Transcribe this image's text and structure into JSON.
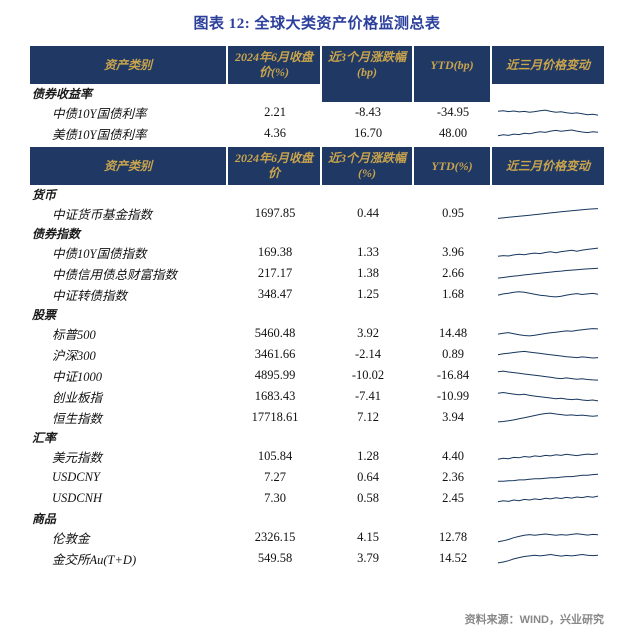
{
  "title": "图表 12: 全球大类资产价格监测总表",
  "source": "资料来源：WIND，兴业研究",
  "colors": {
    "header_bg": "#1F3864",
    "header_text": "#C9A44C",
    "title_text": "#2B3F9C",
    "spark": "#17375E",
    "source_text": "#888888",
    "text": "#111111"
  },
  "chart_data": [
    {
      "type": "table",
      "columns": [
        "资产类别",
        "2024年6月收盘价(%)",
        "近3个月涨跌幅(bp)",
        "YTD(bp)",
        "近三月价格变动"
      ],
      "sections": [
        {
          "label": "债券收益率",
          "rows": [
            {
              "name": "中债10Y国债利率",
              "close": "2.21",
              "chg_3m": "-8.43",
              "ytd": "-34.95",
              "spark": [
                0.62,
                0.66,
                0.58,
                0.64,
                0.55,
                0.6,
                0.52,
                0.58,
                0.66,
                0.72,
                0.6,
                0.52,
                0.56,
                0.48,
                0.42,
                0.46,
                0.38,
                0.3,
                0.34,
                0.26
              ]
            },
            {
              "name": "美债10Y国债利率",
              "close": "4.36",
              "chg_3m": "16.70",
              "ytd": "48.00",
              "spark": [
                0.3,
                0.38,
                0.33,
                0.45,
                0.4,
                0.52,
                0.47,
                0.58,
                0.66,
                0.6,
                0.72,
                0.78,
                0.7,
                0.76,
                0.82,
                0.72,
                0.64,
                0.58,
                0.66,
                0.62
              ]
            }
          ]
        }
      ]
    },
    {
      "type": "table",
      "columns": [
        "资产类别",
        "2024年6月收盘价",
        "近3个月涨跌幅(%)",
        "YTD(%)",
        "近三月价格变动"
      ],
      "sections": [
        {
          "label": "货币",
          "rows": [
            {
              "name": "中证货币基金指数",
              "close": "1697.85",
              "chg_3m": "0.44",
              "ytd": "0.95",
              "spark": [
                0.05,
                0.1,
                0.15,
                0.2,
                0.25,
                0.3,
                0.35,
                0.4,
                0.45,
                0.5,
                0.55,
                0.6,
                0.65,
                0.7,
                0.75,
                0.8,
                0.85,
                0.88,
                0.92,
                0.95
              ]
            }
          ]
        },
        {
          "label": "债券指数",
          "rows": [
            {
              "name": "中债10Y国债指数",
              "close": "169.38",
              "chg_3m": "1.33",
              "ytd": "3.96",
              "spark": [
                0.15,
                0.22,
                0.18,
                0.28,
                0.34,
                0.3,
                0.38,
                0.45,
                0.4,
                0.5,
                0.56,
                0.48,
                0.58,
                0.64,
                0.7,
                0.62,
                0.72,
                0.78,
                0.85,
                0.9
              ]
            },
            {
              "name": "中债信用债总财富指数",
              "close": "217.17",
              "chg_3m": "1.38",
              "ytd": "2.66",
              "spark": [
                0.08,
                0.14,
                0.2,
                0.26,
                0.31,
                0.37,
                0.42,
                0.48,
                0.53,
                0.58,
                0.63,
                0.68,
                0.72,
                0.77,
                0.81,
                0.85,
                0.89,
                0.92,
                0.95,
                0.97
              ]
            },
            {
              "name": "中证转债指数",
              "close": "348.47",
              "chg_3m": "1.25",
              "ytd": "1.68",
              "spark": [
                0.45,
                0.55,
                0.62,
                0.7,
                0.75,
                0.7,
                0.62,
                0.52,
                0.44,
                0.38,
                0.32,
                0.28,
                0.35,
                0.45,
                0.52,
                0.58,
                0.5,
                0.55,
                0.6,
                0.52
              ]
            }
          ]
        },
        {
          "label": "股票",
          "rows": [
            {
              "name": "标普500",
              "close": "5460.48",
              "chg_3m": "3.92",
              "ytd": "14.48",
              "spark": [
                0.45,
                0.52,
                0.58,
                0.48,
                0.38,
                0.32,
                0.28,
                0.35,
                0.42,
                0.5,
                0.56,
                0.62,
                0.68,
                0.74,
                0.7,
                0.78,
                0.84,
                0.9,
                0.95,
                0.92
              ]
            },
            {
              "name": "沪深300",
              "close": "3461.66",
              "chg_3m": "-2.14",
              "ytd": "0.89",
              "spark": [
                0.48,
                0.56,
                0.62,
                0.68,
                0.74,
                0.78,
                0.72,
                0.66,
                0.6,
                0.54,
                0.48,
                0.42,
                0.36,
                0.3,
                0.26,
                0.22,
                0.28,
                0.24,
                0.18,
                0.22
              ]
            },
            {
              "name": "中证1000",
              "close": "4895.99",
              "chg_3m": "-10.02",
              "ytd": "-16.84",
              "spark": [
                0.85,
                0.9,
                0.82,
                0.76,
                0.7,
                0.64,
                0.58,
                0.52,
                0.46,
                0.4,
                0.34,
                0.26,
                0.22,
                0.28,
                0.22,
                0.16,
                0.2,
                0.14,
                0.1,
                0.08
              ]
            },
            {
              "name": "创业板指",
              "close": "1683.43",
              "chg_3m": "-7.41",
              "ytd": "-10.99",
              "spark": [
                0.8,
                0.86,
                0.78,
                0.72,
                0.66,
                0.7,
                0.6,
                0.54,
                0.48,
                0.42,
                0.36,
                0.3,
                0.34,
                0.26,
                0.22,
                0.26,
                0.18,
                0.14,
                0.18,
                0.1
              ]
            },
            {
              "name": "恒生指数",
              "close": "17718.61",
              "chg_3m": "7.12",
              "ytd": "3.94",
              "spark": [
                0.1,
                0.14,
                0.2,
                0.28,
                0.38,
                0.48,
                0.58,
                0.68,
                0.78,
                0.86,
                0.9,
                0.82,
                0.76,
                0.7,
                0.74,
                0.68,
                0.72,
                0.66,
                0.62,
                0.66
              ]
            }
          ]
        },
        {
          "label": "汇率",
          "rows": [
            {
              "name": "美元指数",
              "close": "105.84",
              "chg_3m": "1.28",
              "ytd": "4.40",
              "spark": [
                0.25,
                0.35,
                0.3,
                0.42,
                0.38,
                0.5,
                0.45,
                0.55,
                0.5,
                0.6,
                0.55,
                0.65,
                0.6,
                0.7,
                0.64,
                0.58,
                0.66,
                0.72,
                0.68,
                0.75
              ]
            },
            {
              "name": "USDCNY",
              "close": "7.27",
              "chg_3m": "0.64",
              "ytd": "2.36",
              "spark": [
                0.15,
                0.15,
                0.2,
                0.22,
                0.28,
                0.28,
                0.34,
                0.38,
                0.38,
                0.44,
                0.48,
                0.48,
                0.54,
                0.58,
                0.58,
                0.64,
                0.7,
                0.7,
                0.76,
                0.8
              ]
            },
            {
              "name": "USDCNH",
              "close": "7.30",
              "chg_3m": "0.58",
              "ytd": "2.45",
              "spark": [
                0.2,
                0.3,
                0.24,
                0.36,
                0.3,
                0.42,
                0.36,
                0.46,
                0.4,
                0.52,
                0.46,
                0.56,
                0.5,
                0.6,
                0.54,
                0.64,
                0.58,
                0.68,
                0.62,
                0.72
              ]
            }
          ]
        },
        {
          "label": "商品",
          "rows": [
            {
              "name": "伦敦金",
              "close": "2326.15",
              "chg_3m": "4.15",
              "ytd": "12.78",
              "spark": [
                0.12,
                0.2,
                0.32,
                0.48,
                0.6,
                0.7,
                0.76,
                0.7,
                0.76,
                0.82,
                0.76,
                0.7,
                0.76,
                0.72,
                0.78,
                0.84,
                0.78,
                0.72,
                0.78,
                0.75
              ]
            },
            {
              "name": "金交所Au(T+D)",
              "close": "549.58",
              "chg_3m": "3.79",
              "ytd": "14.52",
              "spark": [
                0.1,
                0.18,
                0.3,
                0.46,
                0.58,
                0.68,
                0.74,
                0.8,
                0.74,
                0.8,
                0.86,
                0.78,
                0.72,
                0.78,
                0.74,
                0.8,
                0.86,
                0.8,
                0.76,
                0.8
              ]
            }
          ]
        }
      ]
    }
  ]
}
